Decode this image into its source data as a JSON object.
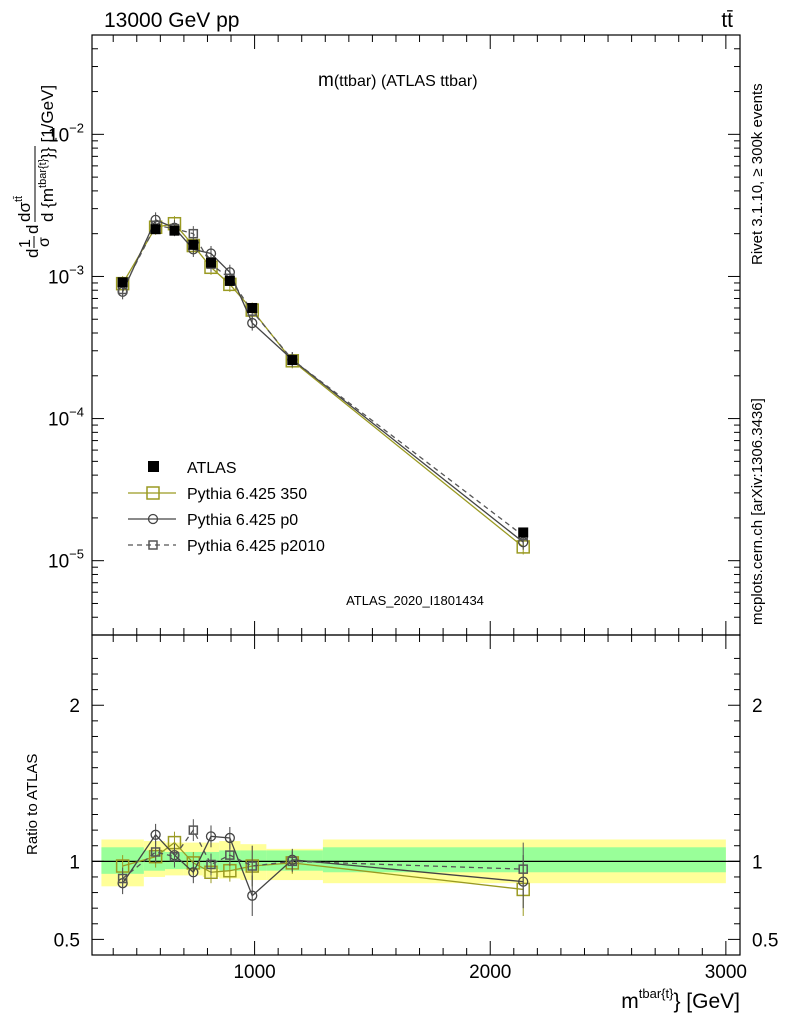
{
  "header": {
    "left": "13000 GeV pp",
    "right": "tt̄"
  },
  "side": {
    "upper": "Rivet 3.1.10, ≥ 300k events",
    "lower": "mcplots.cern.ch [arXiv:1306.3436]"
  },
  "colors": {
    "data": "#000000",
    "p350": "#9a9a22",
    "p0": "#444444",
    "p2010": "#555555",
    "band_inner": "#99ff99",
    "band_outer": "#ffff99"
  },
  "chart_data": [
    {
      "type": "scatter",
      "panel": "main",
      "title": "m(ttbar) (ATLAS ttbar)",
      "title_main": "m",
      "title_sub": "(ttbar) (ATLAS ttbar)",
      "ylabel": "d{1/σ}d{dσ^{tt̄}}{d {m^{tbar{t}}}} [1/GeV]",
      "ylabel_parts": {
        "a": "1",
        "b": "σ",
        "c": "d",
        "d": "dσ",
        "e": "tt̄",
        "f": "d {m",
        "g": "tbar{t}",
        "h": "}} [1/GeV]"
      },
      "xlabel": "m^{tbar{t}} [GeV]",
      "xlabel_main": "m",
      "xlabel_sup": "tbar{t}",
      "xlabel_unit": "} [GeV]",
      "watermark": "ATLAS_2020_I1801434",
      "xlim": [
        310,
        3060
      ],
      "ylim": [
        3e-06,
        0.05
      ],
      "yscale": "log",
      "ytick_labels": [
        {
          "v": 1e-05,
          "base": "10",
          "exp": "−5"
        },
        {
          "v": 0.0001,
          "base": "10",
          "exp": "−4"
        },
        {
          "v": 0.001,
          "base": "10",
          "exp": "−3"
        },
        {
          "v": 0.01,
          "base": "10",
          "exp": "−2"
        }
      ],
      "legend_position": "lower-left",
      "series": [
        {
          "name": "ATLAS",
          "marker": "filled-square",
          "x": [
            440,
            580,
            660,
            740,
            815,
            895,
            990,
            1160,
            2140
          ],
          "y": [
            0.00091,
            0.00215,
            0.0021,
            0.00167,
            0.00125,
            0.00093,
            0.0006,
            0.000258,
            1.58e-05
          ]
        },
        {
          "name": "Pythia 6.425 350",
          "marker": "open-square",
          "line": "solid",
          "x": [
            440,
            580,
            660,
            740,
            815,
            895,
            990,
            1160,
            2140
          ],
          "y": [
            0.00089,
            0.00222,
            0.00235,
            0.00165,
            0.00116,
            0.00088,
            0.00058,
            0.000255,
            1.25e-05
          ]
        },
        {
          "name": "Pythia 6.425 p0",
          "marker": "open-circle",
          "line": "solid",
          "x": [
            440,
            580,
            660,
            740,
            815,
            895,
            990,
            1160,
            2140
          ],
          "y": [
            0.00078,
            0.0025,
            0.0022,
            0.00155,
            0.00145,
            0.00107,
            0.00047,
            0.00026,
            1.35e-05
          ]
        },
        {
          "name": "Pythia 6.425 p2010",
          "marker": "open-square-small",
          "line": "dashed",
          "x": [
            440,
            580,
            660,
            740,
            815,
            895,
            990,
            1160,
            2140
          ],
          "y": [
            0.00081,
            0.00229,
            0.00217,
            0.002,
            0.00122,
            0.00097,
            0.00057,
            0.00026,
            1.5e-05
          ]
        }
      ]
    },
    {
      "type": "scatter",
      "panel": "ratio",
      "ylabel": "Ratio to ATLAS",
      "xlim": [
        310,
        3060
      ],
      "ylim": [
        0.4,
        2.45
      ],
      "yticks": [
        0.5,
        1,
        2
      ],
      "ytick_labels": [
        "0.5",
        "1",
        "2"
      ],
      "xticks": [
        1000,
        2000,
        3000
      ],
      "xtick_labels": [
        "1000",
        "2000",
        "3000"
      ],
      "bands": [
        {
          "x0": 350,
          "x1": 530,
          "inner": [
            0.92,
            1.09
          ],
          "outer": [
            0.84,
            1.14
          ]
        },
        {
          "x0": 530,
          "x1": 620,
          "inner": [
            0.94,
            1.07
          ],
          "outer": [
            0.9,
            1.13
          ]
        },
        {
          "x0": 620,
          "x1": 700,
          "inner": [
            0.95,
            1.06
          ],
          "outer": [
            0.91,
            1.12
          ]
        },
        {
          "x0": 700,
          "x1": 780,
          "inner": [
            0.95,
            1.06
          ],
          "outer": [
            0.91,
            1.12
          ]
        },
        {
          "x0": 780,
          "x1": 850,
          "inner": [
            0.95,
            1.06
          ],
          "outer": [
            0.9,
            1.12
          ]
        },
        {
          "x0": 850,
          "x1": 940,
          "inner": [
            0.94,
            1.07
          ],
          "outer": [
            0.89,
            1.13
          ]
        },
        {
          "x0": 940,
          "x1": 1050,
          "inner": [
            0.94,
            1.07
          ],
          "outer": [
            0.88,
            1.11
          ]
        },
        {
          "x0": 1050,
          "x1": 1290,
          "inner": [
            0.94,
            1.07
          ],
          "outer": [
            0.88,
            1.08
          ]
        },
        {
          "x0": 1290,
          "x1": 3000,
          "inner": [
            0.93,
            1.09
          ],
          "outer": [
            0.86,
            1.14
          ]
        }
      ],
      "series": [
        {
          "name": "Pythia 6.425 350",
          "x": [
            440,
            580,
            660,
            740,
            815,
            895,
            990,
            1160,
            2140
          ],
          "y": [
            0.97,
            1.03,
            1.12,
            0.99,
            0.93,
            0.94,
            0.97,
            0.99,
            0.82
          ]
        },
        {
          "name": "Pythia 6.425 p0",
          "x": [
            440,
            580,
            660,
            740,
            815,
            895,
            990,
            1160,
            2140
          ],
          "y": [
            0.86,
            1.17,
            1.04,
            0.93,
            1.16,
            1.15,
            0.78,
            1.01,
            0.87
          ]
        },
        {
          "name": "Pythia 6.425 p2010",
          "x": [
            440,
            580,
            660,
            740,
            815,
            895,
            990,
            1160,
            2140
          ],
          "y": [
            0.89,
            1.06,
            1.03,
            1.2,
            0.98,
            1.04,
            0.97,
            1.0,
            0.95
          ]
        }
      ]
    }
  ]
}
